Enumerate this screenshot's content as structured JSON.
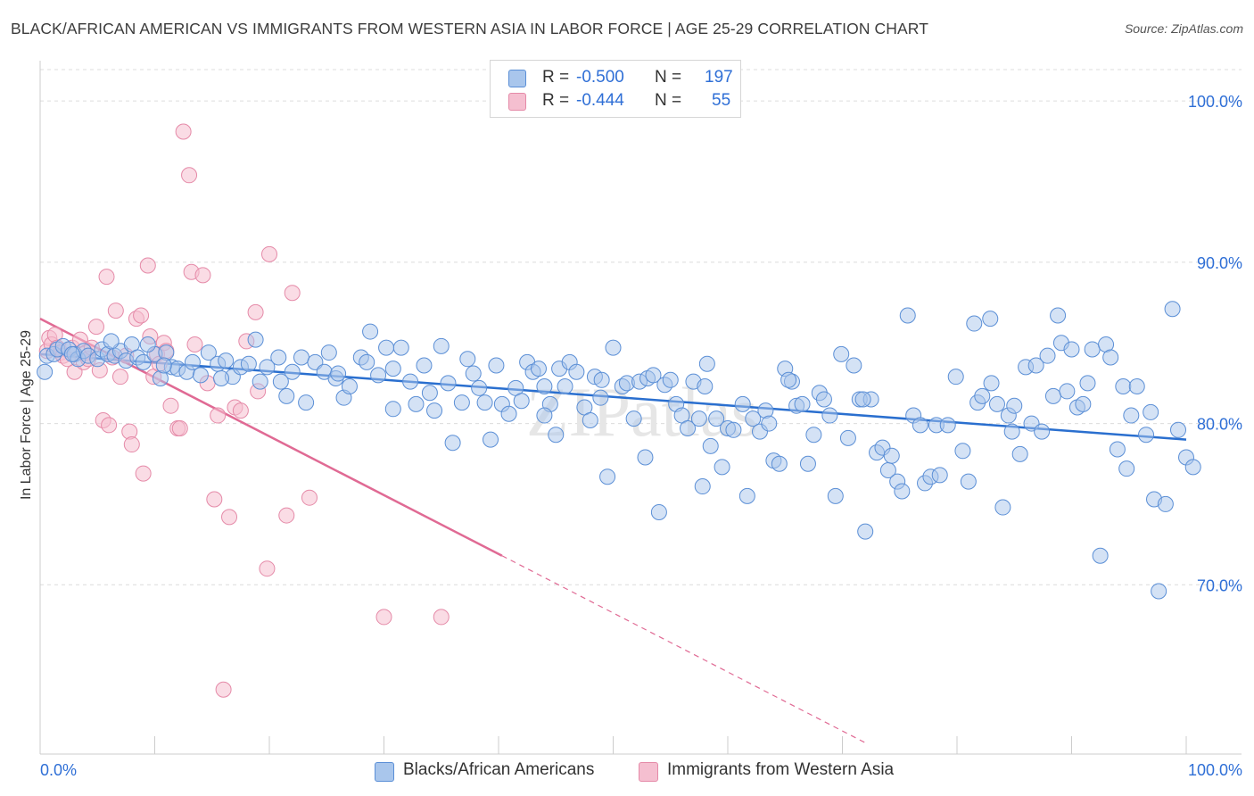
{
  "title": "BLACK/AFRICAN AMERICAN VS IMMIGRANTS FROM WESTERN ASIA IN LABOR FORCE | AGE 25-29 CORRELATION CHART",
  "source": "Source: ZipAtlas.com",
  "watermark": "ZIPatlas",
  "legend": {
    "rows": [
      {
        "r_label": "R =",
        "r_value": "-0.500",
        "n_label": "N =",
        "n_value": "197"
      },
      {
        "r_label": "R =",
        "r_value": "-0.444",
        "n_label": "N =",
        "n_value": "55"
      }
    ]
  },
  "bottom_legend": {
    "series1": "Blacks/African Americans",
    "series2": "Immigrants from Western Asia"
  },
  "colors": {
    "blue_fill": "#a9c6ec",
    "blue_edge": "#5b8fd6",
    "blue_line": "#2a6fcf",
    "pink_fill": "#f5bfd0",
    "pink_edge": "#e58aa8",
    "pink_line": "#e06a94",
    "axis_text": "#2f6fd6",
    "grid": "#dcdcdc"
  },
  "chart_data": {
    "type": "scatter",
    "title": "BLACK/AFRICAN AMERICAN VS IMMIGRANTS FROM WESTERN ASIA IN LABOR FORCE | AGE 25-29 CORRELATION CHART",
    "xlabel": "",
    "ylabel": "In Labor Force | Age 25-29",
    "xlim": [
      0,
      100
    ],
    "ylim": [
      59.5,
      102.5
    ],
    "x_tick_labels": [
      "0.0%",
      "100.0%"
    ],
    "y_ticks": [
      70,
      80,
      90,
      100
    ],
    "y_tick_labels": [
      "70.0%",
      "80.0%",
      "90.0%",
      "100.0%"
    ],
    "grid": true,
    "legend_position": "top-center",
    "series": [
      {
        "name": "Blacks/African Americans",
        "R": -0.5,
        "N": 197,
        "trend": {
          "x": [
            0,
            100
          ],
          "y": [
            84.3,
            79.0
          ]
        },
        "points": [
          [
            0.4,
            83.2
          ],
          [
            0.6,
            84.2
          ],
          [
            1.2,
            84.3
          ],
          [
            1.5,
            84.6
          ],
          [
            2.0,
            84.8
          ],
          [
            2.5,
            84.6
          ],
          [
            3.0,
            84.3
          ],
          [
            3.3,
            84.0
          ],
          [
            3.8,
            84.5
          ],
          [
            4.2,
            84.2
          ],
          [
            5.0,
            84.0
          ],
          [
            5.4,
            84.6
          ],
          [
            5.9,
            84.3
          ],
          [
            6.5,
            84.2
          ],
          [
            7.0,
            84.5
          ],
          [
            7.5,
            83.9
          ],
          [
            8.0,
            84.9
          ],
          [
            8.5,
            84.1
          ],
          [
            9.0,
            83.8
          ],
          [
            10.0,
            84.3
          ],
          [
            10.5,
            82.8
          ],
          [
            11.0,
            84.4
          ],
          [
            11.5,
            83.5
          ],
          [
            12.0,
            83.4
          ],
          [
            12.8,
            83.2
          ],
          [
            13.3,
            83.8
          ],
          [
            14.0,
            83.0
          ],
          [
            14.7,
            84.4
          ],
          [
            15.5,
            83.7
          ],
          [
            16.2,
            83.9
          ],
          [
            16.8,
            82.9
          ],
          [
            17.5,
            83.5
          ],
          [
            18.2,
            83.7
          ],
          [
            18.8,
            85.2
          ],
          [
            19.2,
            82.6
          ],
          [
            19.8,
            83.5
          ],
          [
            20.8,
            84.1
          ],
          [
            21.5,
            81.7
          ],
          [
            22.0,
            83.2
          ],
          [
            22.8,
            84.1
          ],
          [
            23.2,
            81.3
          ],
          [
            24.0,
            83.8
          ],
          [
            24.8,
            83.2
          ],
          [
            25.2,
            84.4
          ],
          [
            25.8,
            82.8
          ],
          [
            26.5,
            81.6
          ],
          [
            27.0,
            82.3
          ],
          [
            28.0,
            84.1
          ],
          [
            28.5,
            83.8
          ],
          [
            28.8,
            85.7
          ],
          [
            29.5,
            83.0
          ],
          [
            30.2,
            84.7
          ],
          [
            30.8,
            83.4
          ],
          [
            31.5,
            84.7
          ],
          [
            32.3,
            82.6
          ],
          [
            32.8,
            81.2
          ],
          [
            33.5,
            83.6
          ],
          [
            34.4,
            80.8
          ],
          [
            35.0,
            84.8
          ],
          [
            35.6,
            82.5
          ],
          [
            36.0,
            78.8
          ],
          [
            36.8,
            81.3
          ],
          [
            37.3,
            84.0
          ],
          [
            37.8,
            83.1
          ],
          [
            38.3,
            82.2
          ],
          [
            38.8,
            81.3
          ],
          [
            39.3,
            79.0
          ],
          [
            39.8,
            83.6
          ],
          [
            40.3,
            81.2
          ],
          [
            40.9,
            80.6
          ],
          [
            41.5,
            82.2
          ],
          [
            42.0,
            81.4
          ],
          [
            42.5,
            83.8
          ],
          [
            43.0,
            83.2
          ],
          [
            43.5,
            83.4
          ],
          [
            44.0,
            82.3
          ],
          [
            44.5,
            81.2
          ],
          [
            45.0,
            79.3
          ],
          [
            45.3,
            83.4
          ],
          [
            45.8,
            82.3
          ],
          [
            46.2,
            83.8
          ],
          [
            46.8,
            83.2
          ],
          [
            47.5,
            81.0
          ],
          [
            48.0,
            80.2
          ],
          [
            48.4,
            82.9
          ],
          [
            48.9,
            81.6
          ],
          [
            49.5,
            76.7
          ],
          [
            50.0,
            84.7
          ],
          [
            50.8,
            82.3
          ],
          [
            51.2,
            82.5
          ],
          [
            51.8,
            80.3
          ],
          [
            52.3,
            82.6
          ],
          [
            52.8,
            77.9
          ],
          [
            53.0,
            82.8
          ],
          [
            53.5,
            83.0
          ],
          [
            54.0,
            74.5
          ],
          [
            54.5,
            82.4
          ],
          [
            55.0,
            82.7
          ],
          [
            55.5,
            81.2
          ],
          [
            56.0,
            80.5
          ],
          [
            56.5,
            79.7
          ],
          [
            57.0,
            82.6
          ],
          [
            57.5,
            80.3
          ],
          [
            57.8,
            76.1
          ],
          [
            58.2,
            83.7
          ],
          [
            58.5,
            78.6
          ],
          [
            59.0,
            80.3
          ],
          [
            59.5,
            77.3
          ],
          [
            60.0,
            79.7
          ],
          [
            60.5,
            79.6
          ],
          [
            61.3,
            81.2
          ],
          [
            61.7,
            75.5
          ],
          [
            62.2,
            80.3
          ],
          [
            62.8,
            79.5
          ],
          [
            63.3,
            80.8
          ],
          [
            63.6,
            80.0
          ],
          [
            64.0,
            77.7
          ],
          [
            64.5,
            77.5
          ],
          [
            65.0,
            83.4
          ],
          [
            65.6,
            82.6
          ],
          [
            66.0,
            81.1
          ],
          [
            66.5,
            81.2
          ],
          [
            67.0,
            77.5
          ],
          [
            67.5,
            79.3
          ],
          [
            68.0,
            81.9
          ],
          [
            68.4,
            81.5
          ],
          [
            68.9,
            80.5
          ],
          [
            69.4,
            75.5
          ],
          [
            69.9,
            84.3
          ],
          [
            70.5,
            79.1
          ],
          [
            71.0,
            83.6
          ],
          [
            71.5,
            81.5
          ],
          [
            72.0,
            73.3
          ],
          [
            72.5,
            81.5
          ],
          [
            73.0,
            78.2
          ],
          [
            73.5,
            78.5
          ],
          [
            74.0,
            77.1
          ],
          [
            74.3,
            78.0
          ],
          [
            74.8,
            76.4
          ],
          [
            75.2,
            75.8
          ],
          [
            75.7,
            86.7
          ],
          [
            76.2,
            80.5
          ],
          [
            76.8,
            79.9
          ],
          [
            77.2,
            76.3
          ],
          [
            77.7,
            76.7
          ],
          [
            78.2,
            79.9
          ],
          [
            78.5,
            76.8
          ],
          [
            79.2,
            79.9
          ],
          [
            79.9,
            82.9
          ],
          [
            80.5,
            78.3
          ],
          [
            81.0,
            76.4
          ],
          [
            81.5,
            86.2
          ],
          [
            81.8,
            81.3
          ],
          [
            82.2,
            81.7
          ],
          [
            82.9,
            86.5
          ],
          [
            83.0,
            82.5
          ],
          [
            83.5,
            81.2
          ],
          [
            84.0,
            74.8
          ],
          [
            84.5,
            80.5
          ],
          [
            84.8,
            79.5
          ],
          [
            85.0,
            81.1
          ],
          [
            85.5,
            78.1
          ],
          [
            86.0,
            83.5
          ],
          [
            86.5,
            80.0
          ],
          [
            86.9,
            83.6
          ],
          [
            87.4,
            79.5
          ],
          [
            87.9,
            84.2
          ],
          [
            88.4,
            81.7
          ],
          [
            88.8,
            86.7
          ],
          [
            89.1,
            85.0
          ],
          [
            89.6,
            82.0
          ],
          [
            90.0,
            84.6
          ],
          [
            90.5,
            81.0
          ],
          [
            91.0,
            81.2
          ],
          [
            91.4,
            82.5
          ],
          [
            91.8,
            84.6
          ],
          [
            92.5,
            71.8
          ],
          [
            93.0,
            84.9
          ],
          [
            93.4,
            84.1
          ],
          [
            94.0,
            78.4
          ],
          [
            94.5,
            82.3
          ],
          [
            94.8,
            77.2
          ],
          [
            95.2,
            80.5
          ],
          [
            95.7,
            82.3
          ],
          [
            96.5,
            79.3
          ],
          [
            96.9,
            80.7
          ],
          [
            97.2,
            75.3
          ],
          [
            97.6,
            69.6
          ],
          [
            98.2,
            75.0
          ],
          [
            98.8,
            87.1
          ],
          [
            99.3,
            79.6
          ],
          [
            100.0,
            77.9
          ],
          [
            100.6,
            77.3
          ],
          [
            44.0,
            80.5
          ],
          [
            30.8,
            80.9
          ],
          [
            21.0,
            82.6
          ],
          [
            15.8,
            82.8
          ],
          [
            9.4,
            84.9
          ],
          [
            2.8,
            84.3
          ],
          [
            6.2,
            85.1
          ],
          [
            34.0,
            81.9
          ],
          [
            58.0,
            82.3
          ],
          [
            71.8,
            81.5
          ],
          [
            65.3,
            82.7
          ],
          [
            49.0,
            82.7
          ],
          [
            26.0,
            83.1
          ],
          [
            10.8,
            83.6
          ]
        ]
      },
      {
        "name": "Immigrants from Western Asia",
        "R": -0.444,
        "N": 55,
        "trend": {
          "x": [
            0,
            40.3
          ],
          "y": [
            86.5,
            71.8
          ],
          "dashed_extension_to": {
            "x": 72.0,
            "y": 60.2
          }
        },
        "points": [
          [
            0.6,
            84.5
          ],
          [
            0.8,
            85.3
          ],
          [
            1.0,
            84.9
          ],
          [
            1.3,
            85.5
          ],
          [
            1.5,
            84.7
          ],
          [
            1.8,
            84.4
          ],
          [
            2.0,
            84.2
          ],
          [
            2.4,
            84.0
          ],
          [
            2.8,
            84.7
          ],
          [
            3.0,
            83.2
          ],
          [
            3.5,
            85.2
          ],
          [
            3.8,
            83.8
          ],
          [
            4.0,
            84.4
          ],
          [
            4.2,
            84.0
          ],
          [
            4.5,
            84.7
          ],
          [
            4.9,
            86.0
          ],
          [
            5.2,
            83.3
          ],
          [
            5.5,
            80.2
          ],
          [
            5.8,
            89.1
          ],
          [
            6.0,
            79.9
          ],
          [
            6.3,
            84.1
          ],
          [
            6.6,
            87.0
          ],
          [
            7.0,
            82.9
          ],
          [
            7.5,
            84.2
          ],
          [
            7.8,
            79.5
          ],
          [
            8.0,
            78.7
          ],
          [
            8.4,
            86.5
          ],
          [
            8.8,
            86.7
          ],
          [
            9.0,
            76.9
          ],
          [
            9.4,
            89.8
          ],
          [
            9.6,
            85.4
          ],
          [
            9.9,
            82.9
          ],
          [
            10.2,
            84.3
          ],
          [
            10.4,
            83.7
          ],
          [
            10.8,
            85.0
          ],
          [
            11.0,
            84.5
          ],
          [
            11.4,
            81.1
          ],
          [
            12.0,
            79.7
          ],
          [
            12.2,
            79.7
          ],
          [
            12.5,
            98.1
          ],
          [
            13.0,
            95.4
          ],
          [
            13.2,
            89.4
          ],
          [
            13.5,
            84.9
          ],
          [
            14.2,
            89.2
          ],
          [
            14.6,
            82.5
          ],
          [
            15.2,
            75.3
          ],
          [
            15.5,
            80.5
          ],
          [
            16.0,
            63.5
          ],
          [
            16.5,
            74.2
          ],
          [
            17.0,
            81.0
          ],
          [
            17.5,
            80.8
          ],
          [
            18.0,
            85.1
          ],
          [
            18.8,
            86.9
          ],
          [
            19.8,
            71.0
          ],
          [
            19.0,
            82.0
          ],
          [
            20.0,
            90.5
          ],
          [
            21.5,
            74.3
          ],
          [
            22.0,
            88.1
          ],
          [
            23.5,
            75.4
          ],
          [
            30.0,
            68.0
          ],
          [
            35.0,
            68.0
          ]
        ]
      }
    ]
  }
}
